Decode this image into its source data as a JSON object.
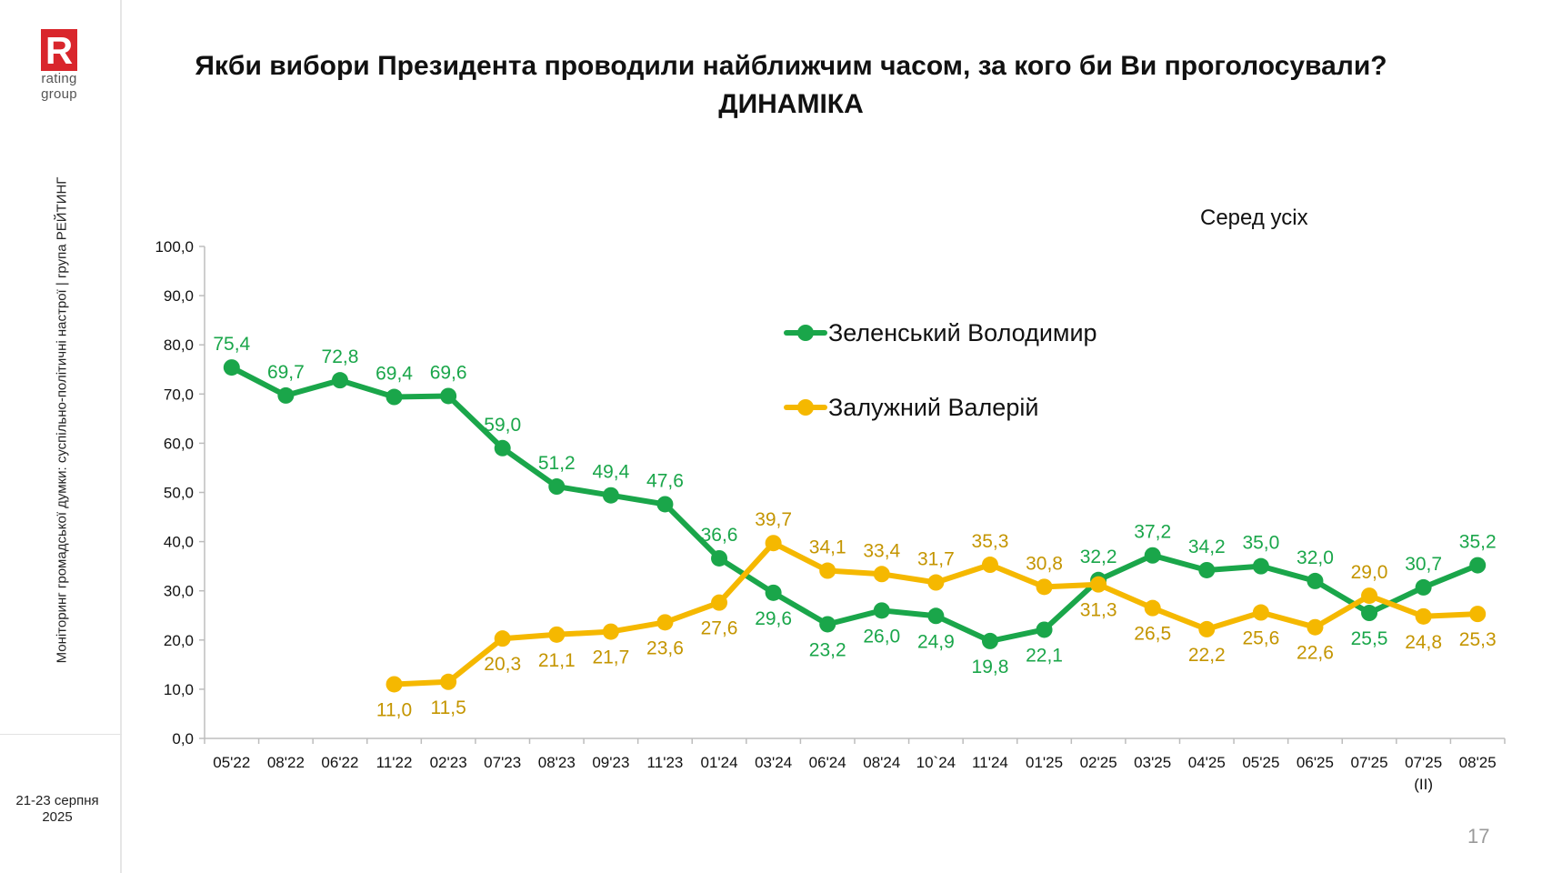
{
  "sidebar": {
    "logo_letter": "R",
    "logo_line1": "rating",
    "logo_line2": "group",
    "vertical_caption": "Моніторинг громадської думки: суспільно-політичні настрої | група РЕЙТИНГ",
    "date_line1": "21-23 серпня",
    "date_line2": "2025"
  },
  "title_line1": "Якби вибори Президента проводили найближчим часом, за кого би Ви проголосували?",
  "title_line2": "ДИНАМІКА",
  "subtitle": "Серед усіх",
  "page_number": "17",
  "colors": {
    "zelensky": "#1aa64a",
    "zaluzhny": "#f5b800",
    "zaluzhny_label": "#c49500",
    "brand_red": "#d9262c"
  },
  "chart_data": {
    "type": "line",
    "categories": [
      "05'22",
      "08'22",
      "06'22",
      "11'22",
      "02'23",
      "07'23",
      "08'23",
      "09'23",
      "11'23",
      "01'24",
      "03'24",
      "06'24",
      "08'24",
      "10`24",
      "11'24",
      "01'25",
      "02'25",
      "03'25",
      "04'25",
      "05'25",
      "06'25",
      "07'25",
      "07'25",
      "08'25"
    ],
    "category_sublabels": [
      "",
      "",
      "",
      "",
      "",
      "",
      "",
      "",
      "",
      "",
      "",
      "",
      "",
      "",
      "",
      "",
      "",
      "",
      "",
      "",
      "",
      "",
      "(ІІ)",
      ""
    ],
    "y_ticks": [
      "0,0",
      "10,0",
      "20,0",
      "30,0",
      "40,0",
      "50,0",
      "60,0",
      "70,0",
      "80,0",
      "90,0",
      "100,0"
    ],
    "ylim": [
      0,
      100
    ],
    "legend_position": "inside-upper-right",
    "series": [
      {
        "name": "Зеленський Володимир",
        "values": [
          75.4,
          69.7,
          72.8,
          69.4,
          69.6,
          59.0,
          51.2,
          49.4,
          47.6,
          36.6,
          29.6,
          23.2,
          26.0,
          24.9,
          19.8,
          22.1,
          32.2,
          37.2,
          34.2,
          35.0,
          32.0,
          25.5,
          30.7,
          35.2
        ],
        "labels": [
          "75,4",
          "69,7",
          "72,8",
          "69,4",
          "69,6",
          "59,0",
          "51,2",
          "49,4",
          "47,6",
          "36,6",
          "29,6",
          "23,2",
          "26,0",
          "24,9",
          "19,8",
          "22,1",
          "32,2",
          "37,2",
          "34,2",
          "35,0",
          "32,0",
          "25,5",
          "30,7",
          "35,2"
        ]
      },
      {
        "name": "Залужний Валерій",
        "values": [
          null,
          null,
          null,
          11.0,
          11.5,
          20.3,
          21.1,
          21.7,
          23.6,
          27.6,
          39.7,
          34.1,
          33.4,
          31.7,
          35.3,
          30.8,
          31.3,
          26.5,
          22.2,
          25.6,
          22.6,
          29.0,
          24.8,
          25.3
        ],
        "labels": [
          "",
          "",
          "",
          "11,0",
          "11,5",
          "20,3",
          "21,1",
          "21,7",
          "23,6",
          "27,6",
          "39,7",
          "34,1",
          "33,4",
          "31,7",
          "35,3",
          "30,8",
          "31,3",
          "26,5",
          "22,2",
          "25,6",
          "22,6",
          "29,0",
          "24,8",
          "25,3"
        ]
      }
    ]
  }
}
